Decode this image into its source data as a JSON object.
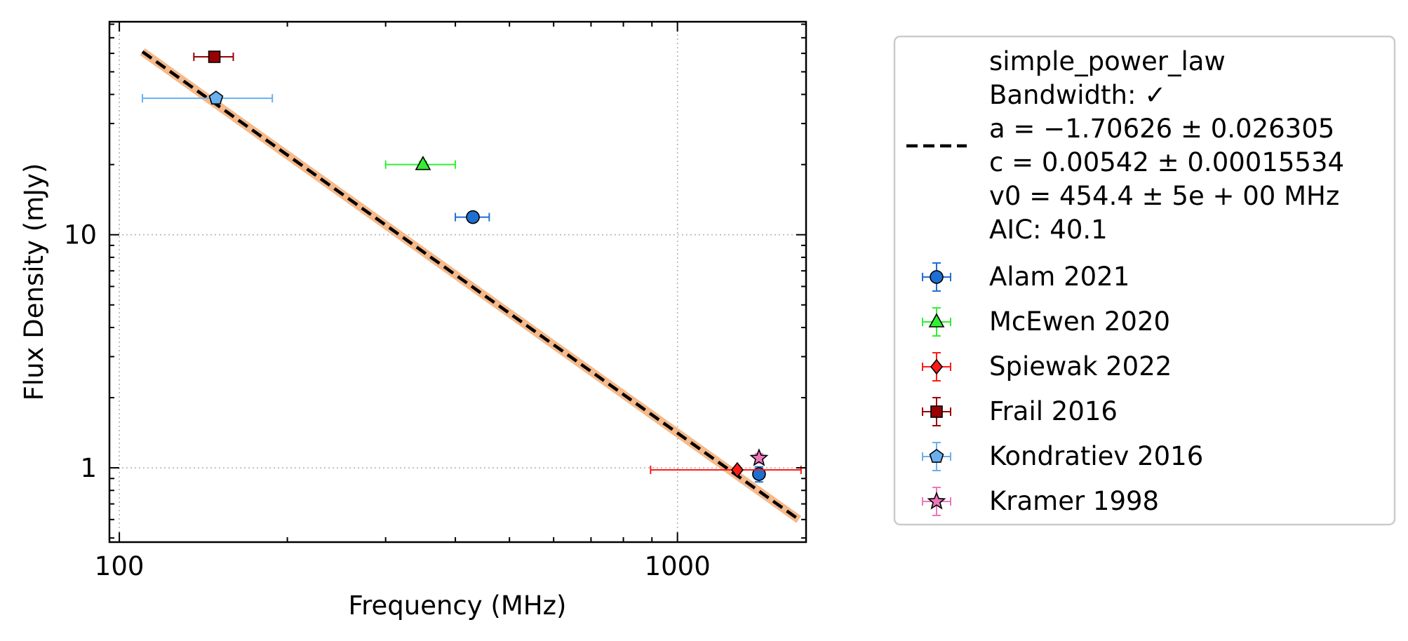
{
  "chart_data": {
    "type": "scatter",
    "xlabel": "Frequency (MHz)",
    "ylabel": "Flux Density (mJy)",
    "x_scale": "log",
    "y_scale": "log",
    "xlim": [
      96,
      1700
    ],
    "ylim": [
      0.48,
      82
    ],
    "x_major_ticks": [
      {
        "value": 100,
        "label": "100"
      },
      {
        "value": 1000,
        "label": "1000"
      }
    ],
    "y_major_ticks": [
      {
        "value": 1,
        "label": "1"
      },
      {
        "value": 10,
        "label": "10"
      }
    ],
    "grid": true,
    "legend_position": "outside-right",
    "fit": {
      "label_lines": [
        "simple_power_law",
        "Bandwidth: ✓",
        "a = −1.70626 ± 0.026305",
        "c = 0.00542 ± 0.00015534",
        "v0 = 454.4 ± 5e + 00 MHz",
        "AIC: 40.1"
      ],
      "a": -1.70626,
      "c": 0.00542,
      "v0": 454.4,
      "x_range": [
        110,
        1650
      ],
      "line_color": "#000000",
      "band_color": "#f5b98a"
    },
    "series": [
      {
        "name": "Alam 2021",
        "marker": "circle",
        "color": "#1f6fd1",
        "points": [
          {
            "x": 430,
            "y": 11.9,
            "xerr": [
              30,
              30
            ],
            "yerr": [
              0.3,
              0.3
            ]
          },
          {
            "x": 1400,
            "y": 0.94,
            "xerr": [
              0,
              0
            ],
            "yerr": [
              0.07,
              0.07
            ]
          }
        ]
      },
      {
        "name": "McEwen 2020",
        "marker": "triangle",
        "color": "#33ee33",
        "points": [
          {
            "x": 350,
            "y": 20.0,
            "xerr": [
              50,
              50
            ],
            "yerr": [
              0.6,
              0.6
            ]
          }
        ]
      },
      {
        "name": "Spiewak 2022",
        "marker": "diamond",
        "color": "#ff1a1a",
        "points": [
          {
            "x": 1280,
            "y": 0.98,
            "xerr": [
              385,
              385
            ],
            "yerr": [
              0.02,
              0.02
            ]
          }
        ]
      },
      {
        "name": "Frail 2016",
        "marker": "square",
        "color": "#990000",
        "points": [
          {
            "x": 148,
            "y": 58.0,
            "xerr": [
              12,
              12
            ],
            "yerr": [
              2,
              2
            ]
          }
        ]
      },
      {
        "name": "Kondratiev 2016",
        "marker": "pentagon",
        "color": "#6ab0ee",
        "points": [
          {
            "x": 149,
            "y": 38.5,
            "xerr": [
              39,
              39
            ],
            "yerr": [
              0.6,
              0.6
            ]
          }
        ]
      },
      {
        "name": "Kramer 1998",
        "marker": "star",
        "color": "#ee77bb",
        "points": [
          {
            "x": 1400,
            "y": 1.1,
            "xerr": [
              0,
              0
            ],
            "yerr": [
              0.05,
              0.05
            ]
          }
        ]
      }
    ]
  }
}
